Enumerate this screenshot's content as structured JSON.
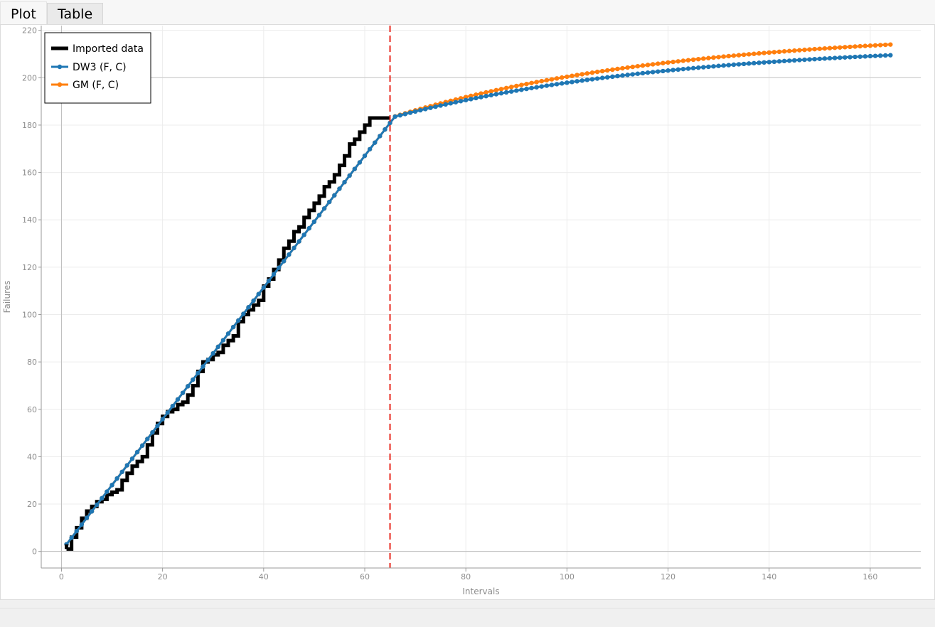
{
  "tabs": [
    {
      "label": "Plot",
      "active": true
    },
    {
      "label": "Table",
      "active": false
    }
  ],
  "chart_data": {
    "type": "line",
    "title": "",
    "xlabel": "Intervals",
    "ylabel": "Failures",
    "xlim": [
      -4,
      170
    ],
    "ylim": [
      -7,
      222
    ],
    "xticks": [
      0,
      20,
      40,
      60,
      80,
      100,
      120,
      140,
      160
    ],
    "yticks": [
      0,
      20,
      40,
      60,
      80,
      100,
      120,
      140,
      160,
      180,
      200,
      220
    ],
    "grid": true,
    "legend_position": "top-left",
    "cutoff_x": 65,
    "cutoff_color": "#e8261c",
    "series": [
      {
        "name": "Imported data",
        "style": "step",
        "color": "#000000",
        "x": [
          1,
          2,
          3,
          4,
          5,
          6,
          7,
          8,
          9,
          10,
          11,
          12,
          13,
          14,
          15,
          16,
          17,
          18,
          19,
          20,
          21,
          22,
          23,
          24,
          25,
          26,
          27,
          28,
          29,
          30,
          31,
          32,
          33,
          34,
          35,
          36,
          37,
          38,
          39,
          40,
          41,
          42,
          43,
          44,
          45,
          46,
          47,
          48,
          49,
          50,
          51,
          52,
          53,
          54,
          55,
          56,
          57,
          58,
          59,
          60,
          61,
          62,
          63,
          64,
          65
        ],
        "values": [
          1,
          6,
          10,
          14,
          17,
          19,
          21,
          22,
          24,
          25,
          26,
          30,
          33,
          36,
          38,
          40,
          45,
          50,
          54,
          57,
          59,
          60,
          62,
          63,
          66,
          70,
          76,
          80,
          81,
          83,
          84,
          87,
          89,
          91,
          97,
          100,
          102,
          104,
          106,
          112,
          115,
          119,
          123,
          128,
          131,
          135,
          137,
          141,
          144,
          147,
          150,
          154,
          156,
          159,
          163,
          167,
          172,
          174,
          177,
          180,
          183,
          183,
          183,
          183,
          183
        ],
        "first_value": 3
      },
      {
        "name": "DW3 (F, C)",
        "style": "line-markers",
        "color": "#1f77b4",
        "x_start": 1,
        "x_end": 164,
        "fit_start": 3,
        "fit_slope": 2.78,
        "cutoff_value": 183,
        "end_value": 209.5
      },
      {
        "name": "GM (F, C)",
        "style": "line-markers",
        "color": "#ff7f0e",
        "x_start": 1,
        "x_end": 164,
        "fit_start": 3,
        "fit_slope": 2.78,
        "cutoff_value": 183,
        "end_value": 214
      }
    ]
  }
}
